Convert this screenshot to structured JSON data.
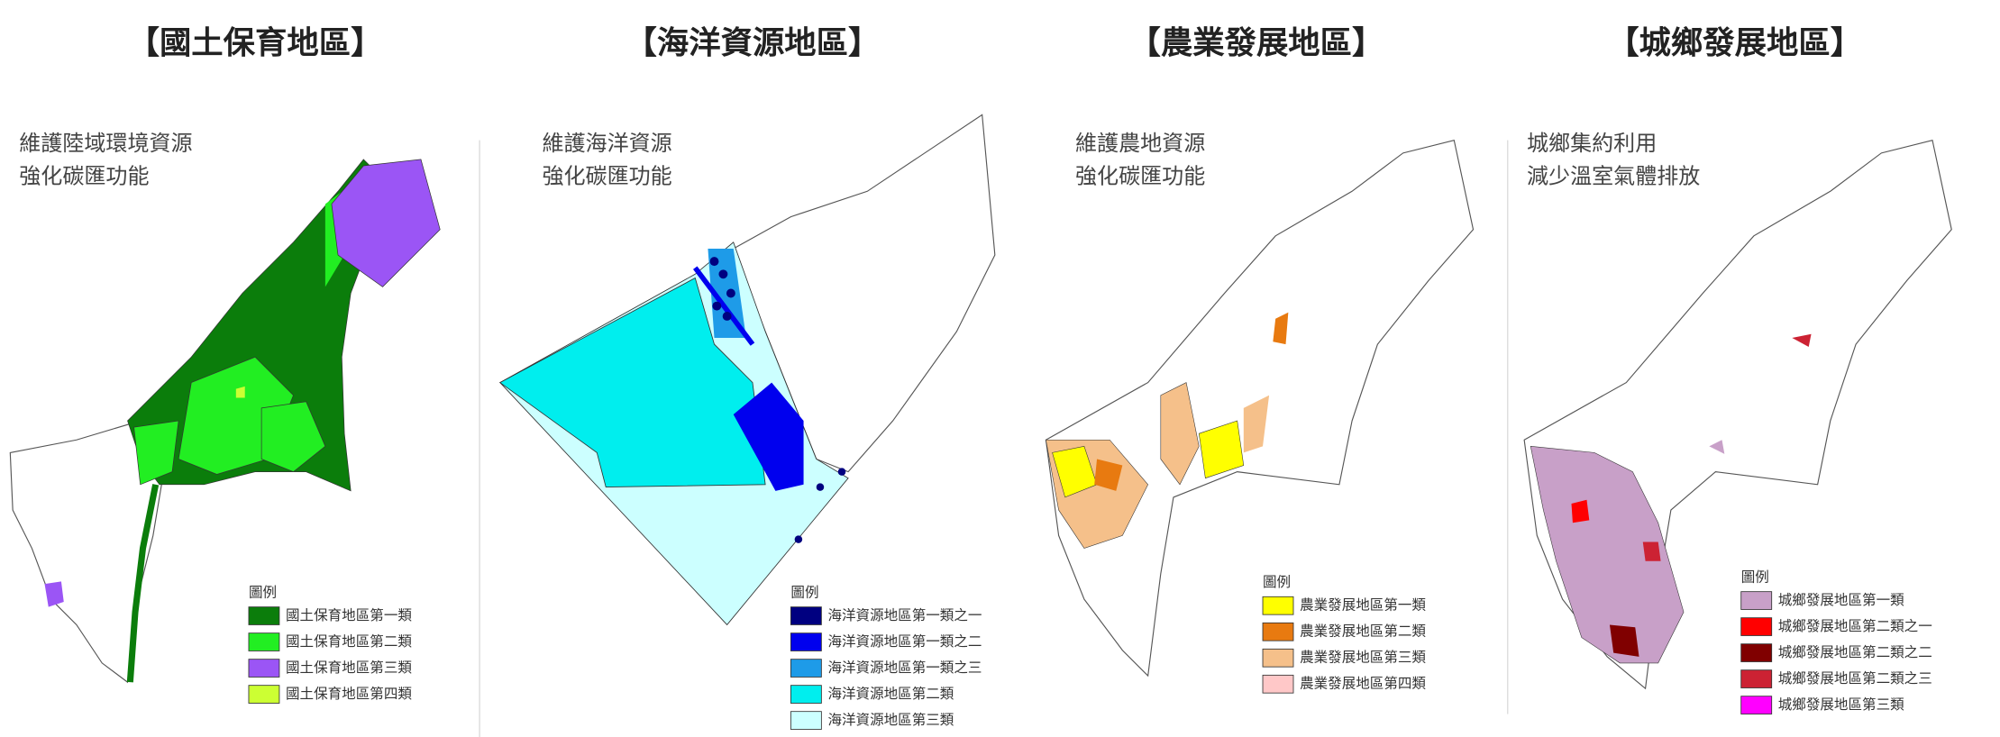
{
  "panels": [
    {
      "title": "【國土保育地區】",
      "subtitle": [
        "維護陸域環境資源",
        "強化碳匯功能"
      ],
      "legend": {
        "title": "圖例",
        "items": [
          {
            "label": "國土保育地區第一類",
            "color": "#0b7d0b"
          },
          {
            "label": "國土保育地區第二類",
            "color": "#22ee22"
          },
          {
            "label": "國土保育地區第三類",
            "color": "#9b55f5"
          },
          {
            "label": "國土保育地區第四類",
            "color": "#ccff33"
          }
        ]
      }
    },
    {
      "title": "【海洋資源地區】",
      "subtitle": [
        "維護海洋資源",
        "強化碳匯功能"
      ],
      "legend": {
        "title": "圖例",
        "items": [
          {
            "label": "海洋資源地區第一類之一",
            "color": "#000080"
          },
          {
            "label": "海洋資源地區第一類之二",
            "color": "#0000ee"
          },
          {
            "label": "海洋資源地區第一類之三",
            "color": "#1e9be8"
          },
          {
            "label": "海洋資源地區第二類",
            "color": "#00eeee"
          },
          {
            "label": "海洋資源地區第三類",
            "color": "#ccffff"
          }
        ]
      }
    },
    {
      "title": "【農業發展地區】",
      "subtitle": [
        "維護農地資源",
        "強化碳匯功能"
      ],
      "legend": {
        "title": "圖例",
        "items": [
          {
            "label": "農業發展地區第一類",
            "color": "#ffff00"
          },
          {
            "label": "農業發展地區第二類",
            "color": "#e87a10"
          },
          {
            "label": "農業發展地區第三類",
            "color": "#f5c08a"
          },
          {
            "label": "農業發展地區第四類",
            "color": "#ffc8c8"
          }
        ]
      }
    },
    {
      "title": "【城鄉發展地區】",
      "subtitle": [
        "城鄉集約利用",
        "減少溫室氣體排放"
      ],
      "legend": {
        "title": "圖例",
        "items": [
          {
            "label": "城鄉發展地區第一類",
            "color": "#c8a0c8"
          },
          {
            "label": "城鄉發展地區第二類之一",
            "color": "#ff0000"
          },
          {
            "label": "城鄉發展地區第二類之二",
            "color": "#800000"
          },
          {
            "label": "城鄉發展地區第二類之三",
            "color": "#cc2233"
          },
          {
            "label": "城鄉發展地區第三類",
            "color": "#ff00ff"
          }
        ]
      }
    }
  ]
}
